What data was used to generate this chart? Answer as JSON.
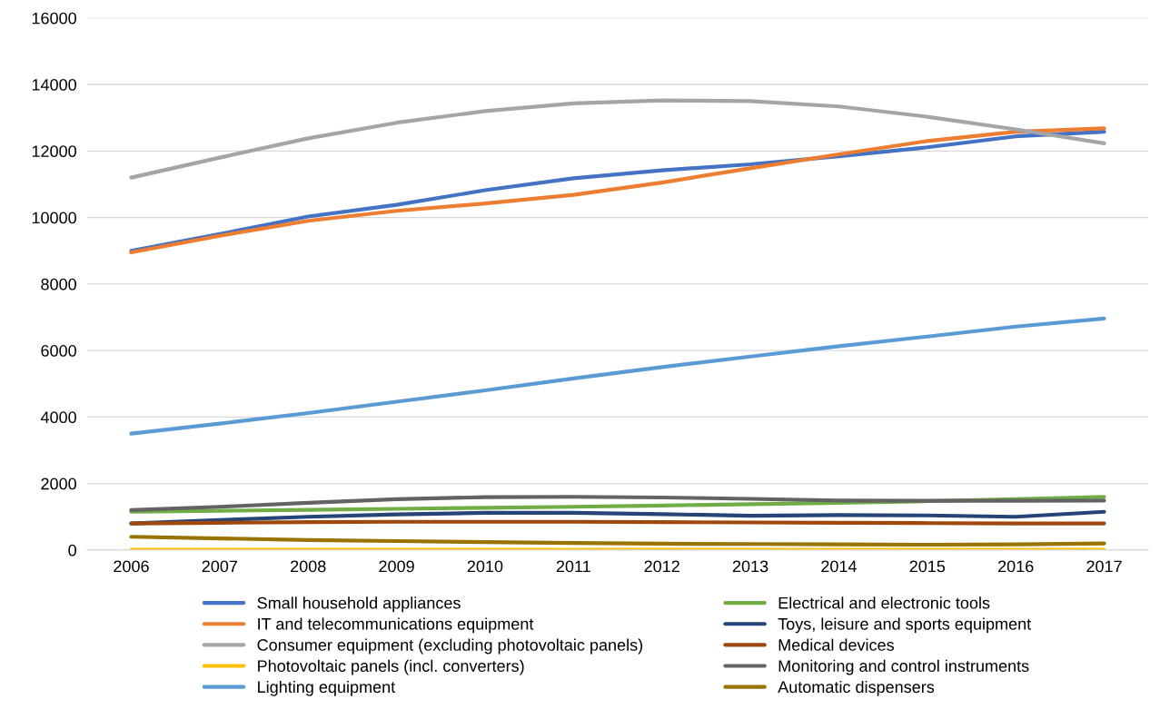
{
  "chart_data": {
    "type": "line",
    "categories": [
      "2006",
      "2007",
      "2008",
      "2009",
      "2010",
      "2011",
      "2012",
      "2013",
      "2014",
      "2015",
      "2016",
      "2017"
    ],
    "series": [
      {
        "name": "Small household appliances",
        "color": "#4472c4",
        "values": [
          9000,
          9500,
          10030,
          10380,
          10820,
          11180,
          11420,
          11600,
          11840,
          12110,
          12440,
          12580
        ]
      },
      {
        "name": "IT and telecommunications equipment",
        "color": "#ed7d31",
        "values": [
          8950,
          9450,
          9900,
          10200,
          10420,
          10680,
          11050,
          11480,
          11900,
          12300,
          12580,
          12680
        ]
      },
      {
        "name": "Consumer equipment (excluding photovoltaic panels)",
        "color": "#a5a5a5",
        "values": [
          11200,
          11800,
          12380,
          12850,
          13200,
          13430,
          13520,
          13500,
          13340,
          13030,
          12650,
          12230
        ]
      },
      {
        "name": "Photovoltaic panels (incl. converters)",
        "color": "#ffc000",
        "values": [
          10,
          10,
          10,
          10,
          10,
          10,
          10,
          10,
          10,
          10,
          10,
          10
        ]
      },
      {
        "name": "Lighting equipment",
        "color": "#5b9bd5",
        "values": [
          3500,
          3800,
          4120,
          4460,
          4800,
          5160,
          5500,
          5820,
          6130,
          6420,
          6720,
          6960
        ]
      },
      {
        "name": "Electrical and electronic tools",
        "color": "#70ad47",
        "values": [
          1150,
          1180,
          1210,
          1240,
          1270,
          1300,
          1340,
          1380,
          1420,
          1470,
          1530,
          1600
        ]
      },
      {
        "name": "Toys, leisure and sports equipment",
        "color": "#264478",
        "values": [
          800,
          900,
          1000,
          1070,
          1120,
          1120,
          1080,
          1030,
          1050,
          1040,
          1000,
          1150
        ]
      },
      {
        "name": "Medical devices",
        "color": "#9e480e",
        "values": [
          800,
          820,
          840,
          850,
          850,
          850,
          840,
          830,
          820,
          810,
          800,
          800
        ]
      },
      {
        "name": "Monitoring and control instruments",
        "color": "#636363",
        "values": [
          1200,
          1300,
          1420,
          1530,
          1590,
          1600,
          1580,
          1540,
          1490,
          1480,
          1480,
          1490
        ]
      },
      {
        "name": "Automatic dispensers",
        "color": "#997300",
        "values": [
          400,
          350,
          300,
          270,
          240,
          210,
          190,
          180,
          170,
          160,
          170,
          200
        ]
      }
    ],
    "ylim": [
      0,
      16000
    ],
    "yticks": [
      0,
      2000,
      4000,
      6000,
      8000,
      10000,
      12000,
      14000,
      16000
    ],
    "grid": "y",
    "legend": "bottom",
    "marker": "none",
    "line_style": "solid"
  }
}
